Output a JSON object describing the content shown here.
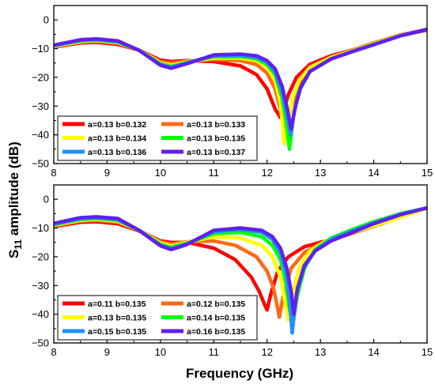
{
  "chart_data": [
    {
      "type": "line",
      "panel": "top",
      "xlim": [
        8,
        15
      ],
      "ylim": [
        -50,
        5
      ],
      "xticks": [
        8,
        9,
        10,
        11,
        12,
        13,
        14,
        15
      ],
      "yticks": [
        0,
        -10,
        -20,
        -30,
        -40,
        -50
      ],
      "xlabel": "",
      "ylabel": "",
      "legend_position": "bottom-left",
      "series": [
        {
          "name": "a=0.13 b=0.132",
          "color": "#ff0000",
          "x": [
            8,
            8.5,
            8.8,
            9.2,
            9.6,
            10,
            10.2,
            10.5,
            11,
            11.5,
            11.8,
            12,
            12.15,
            12.25,
            12.3,
            12.4,
            12.55,
            12.8,
            13.2,
            13.6,
            14,
            14.5,
            15
          ],
          "y": [
            -9.5,
            -8,
            -7.8,
            -8.5,
            -10.5,
            -14,
            -14.5,
            -14.2,
            -14.5,
            -16,
            -19,
            -24,
            -31,
            -34,
            -32,
            -26,
            -20,
            -15.5,
            -12.5,
            -10.5,
            -8.5,
            -5.5,
            -3.5
          ]
        },
        {
          "name": "a=0.13 b=0.133",
          "color": "#ff6a13",
          "x": [
            8,
            8.5,
            8.8,
            9.2,
            9.6,
            10,
            10.2,
            10.5,
            11,
            11.5,
            11.8,
            12,
            12.15,
            12.25,
            12.3,
            12.35,
            12.45,
            12.6,
            12.8,
            13.2,
            13.6,
            14,
            14.5,
            15
          ],
          "y": [
            -9.3,
            -7.7,
            -7.4,
            -8.1,
            -10.5,
            -14.5,
            -15,
            -14.3,
            -13.8,
            -14.2,
            -15.5,
            -18.5,
            -24,
            -31,
            -37,
            -39,
            -30,
            -22,
            -17,
            -13,
            -10.5,
            -8,
            -5.2,
            -3.3
          ]
        },
        {
          "name": "a=0.13 b=0.134",
          "color": "#ffff00",
          "x": [
            8,
            8.5,
            8.8,
            9.2,
            9.6,
            10,
            10.2,
            10.5,
            11,
            11.5,
            11.8,
            12,
            12.15,
            12.25,
            12.32,
            12.38,
            12.48,
            12.6,
            12.8,
            13.2,
            13.6,
            14,
            14.5,
            15
          ],
          "y": [
            -9.2,
            -7.5,
            -7.2,
            -7.9,
            -10.5,
            -15,
            -15.8,
            -14.6,
            -13.3,
            -13.3,
            -14.2,
            -16.5,
            -21,
            -29,
            -43,
            -36,
            -27,
            -21,
            -16.5,
            -13,
            -10.8,
            -8.3,
            -5.4,
            -3.3
          ]
        },
        {
          "name": "a=0.13 b=0.135",
          "color": "#00ff00",
          "x": [
            8,
            8.5,
            8.8,
            9.2,
            9.6,
            10,
            10.2,
            10.5,
            11,
            11.5,
            11.8,
            12,
            12.15,
            12.28,
            12.36,
            12.42,
            12.5,
            12.6,
            12.8,
            13.2,
            13.6,
            14,
            14.5,
            15
          ],
          "y": [
            -9,
            -7.3,
            -7,
            -7.7,
            -10.6,
            -15.3,
            -16.2,
            -14.8,
            -12.8,
            -12.8,
            -13.5,
            -15.5,
            -19,
            -27,
            -36,
            -45,
            -33,
            -24.5,
            -18,
            -13.5,
            -11,
            -8.5,
            -5.5,
            -3.3
          ]
        },
        {
          "name": "a=0.13 b=0.136",
          "color": "#1e90ff",
          "x": [
            8,
            8.5,
            8.8,
            9.2,
            9.6,
            10,
            10.2,
            10.5,
            11,
            11.5,
            11.8,
            12,
            12.15,
            12.28,
            12.37,
            12.44,
            12.52,
            12.62,
            12.8,
            13.2,
            13.6,
            14,
            14.5,
            15
          ],
          "y": [
            -8.9,
            -7.1,
            -6.8,
            -7.5,
            -10.6,
            -15.6,
            -16.5,
            -15,
            -12.5,
            -12.3,
            -13,
            -14.8,
            -18,
            -25,
            -33,
            -40,
            -31,
            -24,
            -18,
            -13.6,
            -11,
            -8.6,
            -5.5,
            -3.3
          ]
        },
        {
          "name": "a=0.13 b=0.137",
          "color": "#6020ee",
          "x": [
            8,
            8.5,
            8.8,
            9.2,
            9.6,
            10,
            10.2,
            10.5,
            11,
            11.5,
            11.8,
            12,
            12.15,
            12.28,
            12.38,
            12.45,
            12.53,
            12.63,
            12.8,
            13.2,
            13.6,
            14,
            14.5,
            15
          ],
          "y": [
            -8.8,
            -6.9,
            -6.6,
            -7.3,
            -10.6,
            -15.8,
            -16.8,
            -15.2,
            -12.2,
            -11.9,
            -12.5,
            -14.2,
            -17,
            -23,
            -31,
            -38,
            -30,
            -23.5,
            -18,
            -13.6,
            -11,
            -8.6,
            -5.5,
            -3.3
          ]
        }
      ]
    },
    {
      "type": "line",
      "panel": "bottom",
      "xlim": [
        8,
        15
      ],
      "ylim": [
        -50,
        5
      ],
      "xticks": [
        8,
        9,
        10,
        11,
        12,
        13,
        14,
        15
      ],
      "yticks": [
        0,
        -10,
        -20,
        -30,
        -40,
        -50
      ],
      "xlabel": "Frequency (GHz)",
      "ylabel": "",
      "legend_position": "bottom-left",
      "series": [
        {
          "name": "a=0.11 b=0.135",
          "color": "#ff0000",
          "x": [
            8,
            8.5,
            8.8,
            9.2,
            9.6,
            10,
            10.2,
            10.5,
            11,
            11.4,
            11.7,
            11.85,
            11.95,
            12.0,
            12.07,
            12.2,
            12.4,
            12.7,
            13,
            13.4,
            13.8,
            14.2,
            14.6,
            15
          ],
          "y": [
            -9.5,
            -8,
            -7.8,
            -8.5,
            -11,
            -14.5,
            -15,
            -15,
            -17,
            -21,
            -27,
            -32,
            -36.5,
            -38.5,
            -33,
            -25,
            -20,
            -16.5,
            -15,
            -13,
            -10.5,
            -8,
            -5,
            -3
          ]
        },
        {
          "name": "a=0.12 b=0.135",
          "color": "#ff6a13",
          "x": [
            8,
            8.5,
            8.8,
            9.2,
            9.6,
            10,
            10.2,
            10.5,
            11,
            11.4,
            11.8,
            12.0,
            12.12,
            12.2,
            12.23,
            12.3,
            12.45,
            12.7,
            13,
            13.4,
            13.8,
            14.2,
            14.6,
            15
          ],
          "y": [
            -9.3,
            -7.6,
            -7.3,
            -8,
            -10.8,
            -14.8,
            -15.5,
            -14.8,
            -14.5,
            -16,
            -20,
            -25,
            -31,
            -38,
            -41,
            -34,
            -24,
            -18.5,
            -15.5,
            -13,
            -10.6,
            -8.2,
            -5.3,
            -3.2
          ]
        },
        {
          "name": "a=0.13 b=0.135",
          "color": "#ffff00",
          "x": [
            8,
            8.5,
            8.8,
            9.2,
            9.6,
            10,
            10.2,
            10.5,
            11,
            11.5,
            11.9,
            12.1,
            12.25,
            12.34,
            12.4,
            12.48,
            12.6,
            12.8,
            13.1,
            13.5,
            13.9,
            14.3,
            14.7,
            15
          ],
          "y": [
            -9,
            -7.3,
            -7,
            -7.6,
            -10.8,
            -15.2,
            -16.2,
            -15,
            -13,
            -13.5,
            -16,
            -20,
            -27,
            -36,
            -42,
            -33,
            -24,
            -18,
            -14.5,
            -12,
            -9.8,
            -7.5,
            -5,
            -3.1
          ]
        },
        {
          "name": "a=0.14 b=0.135",
          "color": "#00ff00",
          "x": [
            8,
            8.5,
            8.8,
            9.2,
            9.6,
            10,
            10.2,
            10.5,
            11,
            11.5,
            11.9,
            12.1,
            12.25,
            12.35,
            12.42,
            12.48,
            12.56,
            12.7,
            12.9,
            13.2,
            13.6,
            14,
            14.5,
            15
          ],
          "y": [
            -8.8,
            -7,
            -6.7,
            -7.3,
            -10.8,
            -15.7,
            -16.8,
            -15.3,
            -12,
            -11.5,
            -13,
            -16,
            -21,
            -29,
            -38,
            -44,
            -34,
            -24,
            -17.5,
            -13.5,
            -10.5,
            -7.8,
            -5,
            -3
          ]
        },
        {
          "name": "a=0.15 b=0.135",
          "color": "#1e90ff",
          "x": [
            8,
            8.5,
            8.8,
            9.2,
            9.6,
            10,
            10.2,
            10.5,
            11,
            11.5,
            11.9,
            12.1,
            12.25,
            12.36,
            12.43,
            12.47,
            12.55,
            12.68,
            12.9,
            13.2,
            13.6,
            14,
            14.5,
            15
          ],
          "y": [
            -8.6,
            -6.7,
            -6.4,
            -7,
            -10.8,
            -16,
            -17.2,
            -15.5,
            -11.3,
            -10.5,
            -11.5,
            -14,
            -18.5,
            -26,
            -37,
            -46.5,
            -33,
            -24,
            -18,
            -14,
            -11,
            -8.2,
            -5.2,
            -3
          ]
        },
        {
          "name": "a=0.16 b=0.135",
          "color": "#6020ee",
          "x": [
            8,
            8.5,
            8.8,
            9.2,
            9.6,
            10,
            10.2,
            10.5,
            11,
            11.5,
            11.9,
            12.1,
            12.25,
            12.37,
            12.45,
            12.5,
            12.57,
            12.7,
            12.9,
            13.2,
            13.6,
            14,
            14.5,
            15
          ],
          "y": [
            -8.4,
            -6.4,
            -6.1,
            -6.7,
            -10.8,
            -16.2,
            -17.5,
            -15.7,
            -10.8,
            -10,
            -10.8,
            -13,
            -17,
            -24,
            -32,
            -40,
            -31,
            -23,
            -18,
            -14.5,
            -11.5,
            -8.5,
            -5.4,
            -3
          ]
        }
      ]
    }
  ],
  "y_title_main": "S",
  "y_title_sub": "11",
  "y_title_rest": " amplitude (dB)"
}
